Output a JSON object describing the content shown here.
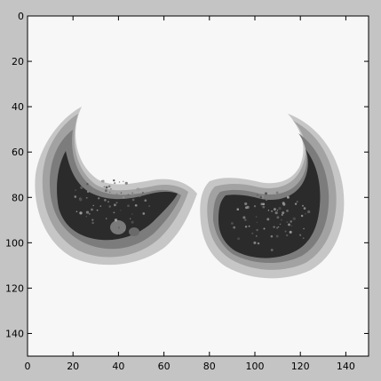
{
  "figure": {
    "background": "#c4c4c4",
    "axes_background": "#f7f7f7"
  },
  "chart_data": {
    "type": "heatmap",
    "title": "",
    "xlabel": "",
    "ylabel": "",
    "xlim": [
      0,
      150
    ],
    "ylim": [
      150,
      0
    ],
    "x_ticks": [
      0,
      20,
      40,
      60,
      80,
      100,
      120,
      140
    ],
    "y_ticks": [
      0,
      20,
      40,
      60,
      80,
      100,
      120,
      140
    ],
    "x_tick_labels": [
      "0",
      "20",
      "40",
      "60",
      "80",
      "100",
      "120",
      "140"
    ],
    "y_tick_labels": [
      "0",
      "20",
      "40",
      "60",
      "80",
      "100",
      "120",
      "140"
    ],
    "grid": false,
    "colormap": "gray"
  }
}
